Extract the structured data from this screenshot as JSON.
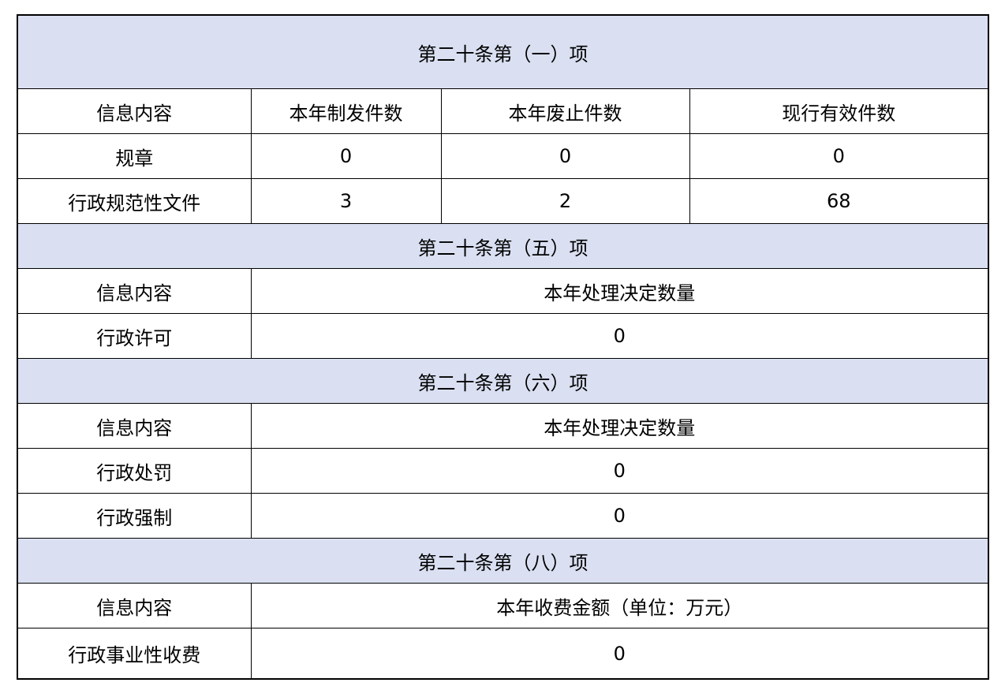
{
  "colors": {
    "section_header_bg": "#dae0f2",
    "border": "#000000"
  },
  "sections": [
    {
      "title": "第二十条第（一）项",
      "headers": [
        "信息内容",
        "本年制发件数",
        "本年废止件数",
        "现行有效件数"
      ],
      "rows": [
        [
          "规章",
          "0",
          "0",
          "0"
        ],
        [
          "行政规范性文件",
          "3",
          "2",
          "68"
        ]
      ]
    },
    {
      "title": "第二十条第（五）项",
      "headers": [
        "信息内容",
        "本年处理决定数量"
      ],
      "rows": [
        [
          "行政许可",
          "0"
        ]
      ]
    },
    {
      "title": "第二十条第（六）项",
      "headers": [
        "信息内容",
        "本年处理决定数量"
      ],
      "rows": [
        [
          "行政处罚",
          "0"
        ],
        [
          "行政强制",
          "0"
        ]
      ]
    },
    {
      "title": "第二十条第（八）项",
      "headers": [
        "信息内容",
        "本年收费金额（单位：万元）"
      ],
      "rows": [
        [
          "行政事业性收费",
          "0"
        ]
      ]
    }
  ]
}
